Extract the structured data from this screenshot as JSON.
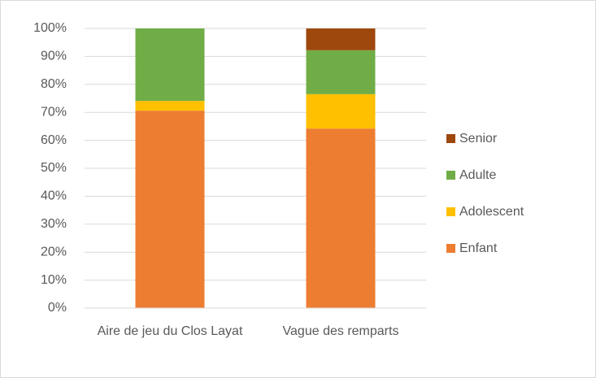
{
  "chart_data": {
    "type": "stacked_bar",
    "categories": [
      "Aire de jeu du Clos Layat",
      "Vague des remparts"
    ],
    "series": [
      {
        "name": "Enfant",
        "color": "#ED7D31",
        "values": [
          70.6,
          64.2
        ]
      },
      {
        "name": "Adolescent",
        "color": "#FFC000",
        "values": [
          3.5,
          12.3
        ]
      },
      {
        "name": "Adulte",
        "color": "#70AD47",
        "values": [
          25.9,
          15.7
        ]
      },
      {
        "name": "Senior",
        "color": "#9E480E",
        "values": [
          0,
          7.8
        ]
      }
    ],
    "ylim": [
      0,
      100
    ],
    "yticks": [
      {
        "value": 0,
        "label": "0%"
      },
      {
        "value": 10,
        "label": "10%"
      },
      {
        "value": 20,
        "label": "20%"
      },
      {
        "value": 30,
        "label": "30%"
      },
      {
        "value": 40,
        "label": "40%"
      },
      {
        "value": 50,
        "label": "50%"
      },
      {
        "value": 60,
        "label": "60%"
      },
      {
        "value": 70,
        "label": "70%"
      },
      {
        "value": 80,
        "label": "80%"
      },
      {
        "value": 90,
        "label": "90%"
      },
      {
        "value": 100,
        "label": "100%"
      }
    ],
    "grid": true,
    "legend": "right"
  }
}
